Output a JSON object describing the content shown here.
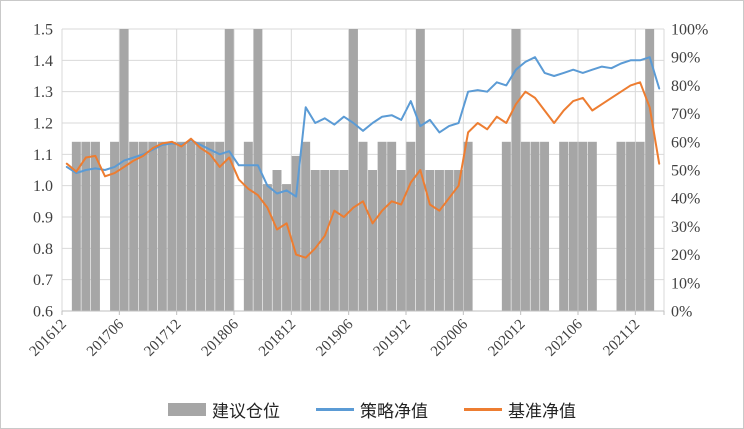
{
  "chart_data": {
    "type": "combo",
    "title": "",
    "x": [
      "201612",
      "201701",
      "201702",
      "201703",
      "201704",
      "201705",
      "201706",
      "201707",
      "201708",
      "201709",
      "201710",
      "201711",
      "201712",
      "201801",
      "201802",
      "201803",
      "201804",
      "201805",
      "201806",
      "201807",
      "201808",
      "201809",
      "201810",
      "201811",
      "201812",
      "201901",
      "201902",
      "201903",
      "201904",
      "201905",
      "201906",
      "201907",
      "201908",
      "201909",
      "201910",
      "201911",
      "201912",
      "202001",
      "202002",
      "202003",
      "202004",
      "202005",
      "202006",
      "202007",
      "202008",
      "202009",
      "202010",
      "202011",
      "202012",
      "202101",
      "202102",
      "202103",
      "202104",
      "202105",
      "202106",
      "202107",
      "202108",
      "202109",
      "202110",
      "202111",
      "202112",
      "202201",
      "202202"
    ],
    "x_axis_ticks": [
      "201612",
      "201706",
      "201712",
      "201806",
      "201812",
      "201906",
      "201912",
      "202006",
      "202012",
      "202106",
      "202112"
    ],
    "series": [
      {
        "name": "建议仓位",
        "type": "bar",
        "axis": "right",
        "unit": "%",
        "color": "#a6a6a6",
        "values": [
          0,
          60,
          60,
          60,
          0,
          60,
          100,
          60,
          60,
          60,
          60,
          60,
          60,
          60,
          60,
          60,
          60,
          100,
          0,
          60,
          100,
          45,
          50,
          45,
          55,
          60,
          50,
          50,
          50,
          50,
          100,
          60,
          50,
          60,
          60,
          50,
          60,
          100,
          50,
          50,
          50,
          50,
          60,
          0,
          0,
          0,
          60,
          100,
          60,
          60,
          60,
          0,
          60,
          60,
          60,
          60,
          0,
          0,
          60,
          60,
          60,
          100,
          0
        ]
      },
      {
        "name": "策略净值",
        "type": "line",
        "axis": "left",
        "color": "#5b9bd5",
        "values": [
          1.06,
          1.04,
          1.05,
          1.055,
          1.05,
          1.06,
          1.08,
          1.09,
          1.1,
          1.115,
          1.13,
          1.135,
          1.13,
          1.145,
          1.13,
          1.115,
          1.1,
          1.11,
          1.065,
          1.065,
          1.065,
          1.0,
          0.975,
          0.985,
          0.965,
          1.25,
          1.2,
          1.215,
          1.195,
          1.22,
          1.2,
          1.175,
          1.2,
          1.22,
          1.225,
          1.21,
          1.27,
          1.19,
          1.21,
          1.17,
          1.19,
          1.2,
          1.3,
          1.305,
          1.3,
          1.33,
          1.32,
          1.37,
          1.395,
          1.41,
          1.36,
          1.35,
          1.36,
          1.37,
          1.36,
          1.37,
          1.38,
          1.375,
          1.39,
          1.4,
          1.4,
          1.41,
          1.31
        ]
      },
      {
        "name": "基准净值",
        "type": "line",
        "axis": "left",
        "color": "#ed7d31",
        "values": [
          1.07,
          1.045,
          1.09,
          1.095,
          1.03,
          1.04,
          1.06,
          1.08,
          1.095,
          1.12,
          1.135,
          1.14,
          1.125,
          1.15,
          1.12,
          1.1,
          1.06,
          1.09,
          1.02,
          0.99,
          0.97,
          0.93,
          0.86,
          0.88,
          0.78,
          0.77,
          0.8,
          0.84,
          0.92,
          0.9,
          0.93,
          0.95,
          0.88,
          0.92,
          0.95,
          0.94,
          1.01,
          1.05,
          0.94,
          0.92,
          0.96,
          1.0,
          1.17,
          1.2,
          1.18,
          1.22,
          1.2,
          1.26,
          1.3,
          1.28,
          1.24,
          1.2,
          1.24,
          1.27,
          1.28,
          1.24,
          1.26,
          1.28,
          1.3,
          1.32,
          1.33,
          1.25,
          1.07
        ]
      }
    ],
    "left_axis": {
      "min": 0.6,
      "max": 1.5,
      "step": 0.1,
      "labels": [
        "1.5",
        "1.4",
        "1.3",
        "1.2",
        "1.1",
        "1.0",
        "0.9",
        "0.8",
        "0.7",
        "0.6"
      ]
    },
    "right_axis": {
      "min": 0,
      "max": 100,
      "step": 10,
      "labels": [
        "100%",
        "90%",
        "80%",
        "70%",
        "60%",
        "50%",
        "40%",
        "30%",
        "20%",
        "10%",
        "0%"
      ]
    },
    "grid": {
      "horizontal": true,
      "vertical": true,
      "color": "#d9d9d9"
    },
    "axis_color": "#bfbfbf",
    "label_color": "#404040",
    "legend_position": "bottom"
  },
  "legend": {
    "items": [
      {
        "label": "建议仓位",
        "swatch": "bar",
        "color": "#a6a6a6"
      },
      {
        "label": "策略净值",
        "swatch": "line",
        "color": "#5b9bd5"
      },
      {
        "label": "基准净值",
        "swatch": "line",
        "color": "#ed7d31"
      }
    ]
  }
}
